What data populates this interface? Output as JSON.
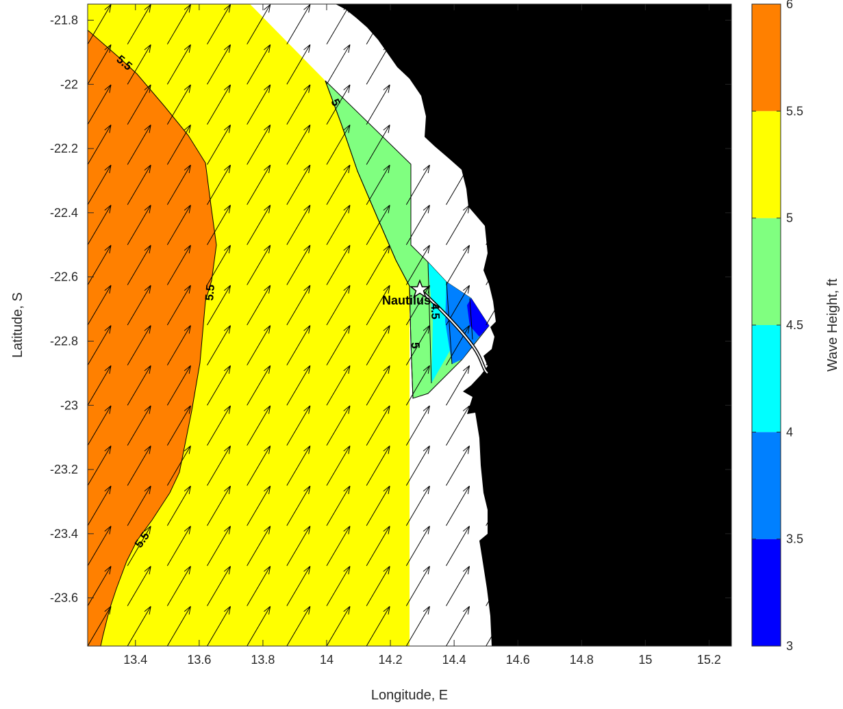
{
  "map": {
    "x_axis": {
      "label": "Longitude, E",
      "ticks": [
        "13.4",
        "13.6",
        "13.8",
        "14",
        "14.2",
        "14.4",
        "14.6",
        "14.8",
        "15",
        "15.2"
      ]
    },
    "y_axis": {
      "label": "Latitude, S",
      "ticks": [
        "-21.8",
        "-22",
        "-22.2",
        "-22.4",
        "-22.6",
        "-22.8",
        "-23",
        "-23.2",
        "-23.4",
        "-23.6"
      ]
    },
    "contour_labels": [
      "5.5",
      "5.5",
      "5.5",
      "5",
      "5",
      "4.5"
    ],
    "place_label": "Nautilus",
    "colorbar": {
      "label": "Wave Height, ft",
      "ticks": [
        "3",
        "3.5",
        "4",
        "4.5",
        "5",
        "5.5",
        "6"
      ],
      "colors": [
        "#0000ff",
        "#0080ff",
        "#00ffff",
        "#80ff80",
        "#ffff00",
        "#ff8000"
      ]
    },
    "colors": {
      "land": "#000000",
      "sea_nodata": "#ffffff",
      "level_5_5_to_6": "#ff8000",
      "level_5_to_5_5": "#ffff00",
      "level_4_5_to_5": "#80ff80",
      "level_4_to_4_5": "#00ffff",
      "level_3_5_to_4": "#0080ff",
      "level_3_to_3_5": "#0000ff"
    },
    "icons": [
      "star-marker-icon",
      "vessel-track-icon",
      "wave-direction-arrow-icon"
    ]
  }
}
